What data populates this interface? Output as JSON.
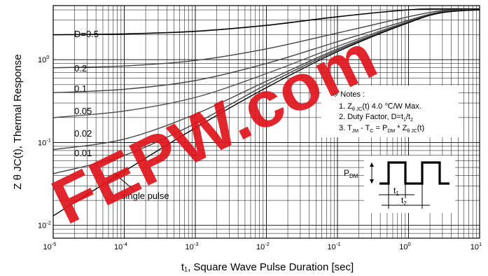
{
  "chart_data": {
    "type": "line",
    "xscale": "log",
    "yscale": "log",
    "xlim": [
      1e-05,
      10
    ],
    "ylim": [
      0.007,
      4.5
    ],
    "grid": true,
    "xlabel": "t₁, Square Wave Pulse Duration [sec]",
    "ylabel": "Z θ JC(t), Thermal Response",
    "x_ticks": [
      {
        "base": "10",
        "exp": "-5"
      },
      {
        "base": "10",
        "exp": "-4"
      },
      {
        "base": "10",
        "exp": "-3"
      },
      {
        "base": "10",
        "exp": "-2"
      },
      {
        "base": "10",
        "exp": "-1"
      },
      {
        "base": "10",
        "exp": "0"
      },
      {
        "base": "10",
        "exp": "1"
      }
    ],
    "y_ticks": [
      {
        "base": "10",
        "exp": "-2"
      },
      {
        "base": "10",
        "exp": "-1"
      },
      {
        "base": "10",
        "exp": "0"
      }
    ],
    "x": [
      1e-05,
      0.0001,
      0.001,
      0.01,
      0.1,
      1,
      3,
      10
    ],
    "series": [
      {
        "name": "D=0.5",
        "values": [
          2.0,
          2.05,
          2.2,
          2.6,
          3.3,
          4.0,
          4.1,
          4.1
        ]
      },
      {
        "name": "0.2",
        "values": [
          0.8,
          0.84,
          0.98,
          1.35,
          2.1,
          3.3,
          3.9,
          4.05
        ]
      },
      {
        "name": "0.1",
        "values": [
          0.4,
          0.44,
          0.56,
          0.9,
          1.65,
          3.0,
          3.8,
          4.0
        ]
      },
      {
        "name": "0.05",
        "values": [
          0.2,
          0.24,
          0.35,
          0.68,
          1.45,
          2.9,
          3.8,
          4.0
        ]
      },
      {
        "name": "0.02",
        "values": [
          0.082,
          0.11,
          0.22,
          0.55,
          1.35,
          2.85,
          3.75,
          4.0
        ]
      },
      {
        "name": "0.01",
        "values": [
          0.042,
          0.07,
          0.17,
          0.5,
          1.3,
          2.8,
          3.75,
          4.0
        ]
      },
      {
        "name": "single pulse",
        "values": [
          0.013,
          0.045,
          0.15,
          0.46,
          1.25,
          2.8,
          3.7,
          4.0
        ]
      }
    ],
    "notes": {
      "heading": "※ Notes :",
      "line1": {
        "a": "1. Z",
        "sub1": "θ JC",
        "b": "(t) 4.0 ℃/W Max."
      },
      "line2": {
        "a": "2. Duty Factor, D=t",
        "sub1": "1",
        "b": "/t",
        "sub2": "2"
      },
      "line3": {
        "a": "3. T",
        "sub1": "JM",
        "b": " - T",
        "sub2": "C",
        "c": " = P",
        "sub3": "DM",
        "d": " * Z",
        "sub4": "θ JC",
        "e": "(t)"
      }
    },
    "pulse_diagram": {
      "pdm": {
        "main": "P",
        "sub": "DM"
      },
      "t1": {
        "main": "t",
        "sub": "1"
      },
      "t2": {
        "main": "t",
        "sub": "2"
      }
    }
  },
  "watermark": {
    "text": "FEPW.com",
    "color": "#e0141c"
  }
}
